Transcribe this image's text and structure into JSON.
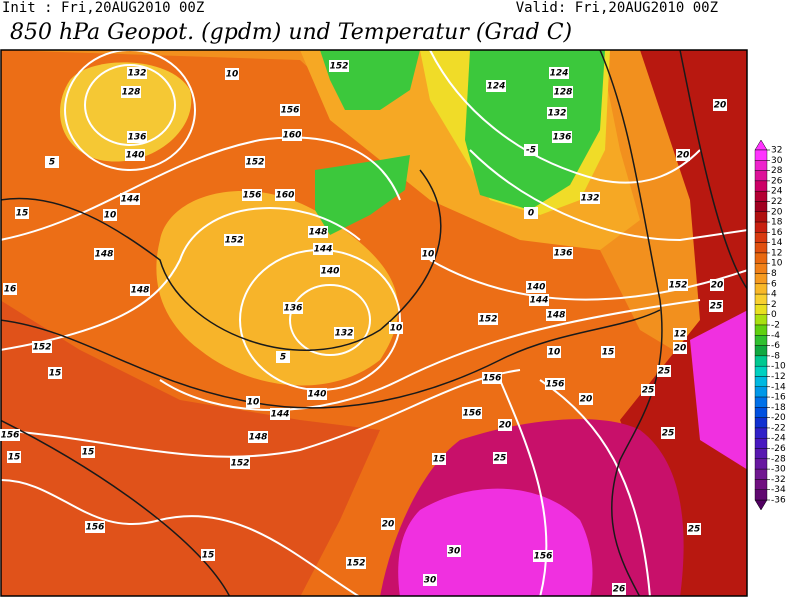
{
  "header": {
    "init": "Init : Fri,20AUG2010 00Z",
    "valid": "Valid: Fri,20AUG2010 00Z",
    "title": "850 hPa Geopot. (gpdm) und Temperatur (Grad C)"
  },
  "colorbar": {
    "ticks": [
      32,
      30,
      28,
      26,
      24,
      22,
      20,
      18,
      16,
      14,
      12,
      10,
      8,
      6,
      4,
      2,
      0,
      -2,
      -4,
      -6,
      -8,
      -10,
      -12,
      -14,
      -16,
      -18,
      -20,
      -22,
      -24,
      -26,
      -28,
      -30,
      -32,
      -34,
      -36
    ],
    "colors": [
      "#ff33ff",
      "#ee22cc",
      "#dd1199",
      "#cc0066",
      "#b30033",
      "#a00020",
      "#b01010",
      "#c82010",
      "#d83a10",
      "#e05010",
      "#e86810",
      "#f08018",
      "#f59a20",
      "#f8b828",
      "#f8d030",
      "#e8e020",
      "#a8e010",
      "#60d010",
      "#30c030",
      "#10a840",
      "#00c890",
      "#00d0c0",
      "#00b8e0",
      "#0098e8",
      "#0070e8",
      "#0050e0",
      "#1030d0",
      "#3020c8",
      "#4818c0",
      "#5818b0",
      "#6818a0",
      "#701890",
      "#701080",
      "#600870"
    ],
    "top_color": "#ff33ff",
    "bottom_color": "#500060"
  },
  "map_labels": [
    "132",
    "128",
    "136",
    "140",
    "144",
    "148",
    "148",
    "152",
    "156",
    "156",
    "15",
    "15",
    "15",
    "15",
    "15",
    "16",
    "5",
    "10",
    "10",
    "152",
    "124",
    "124",
    "128",
    "132",
    "136",
    "156",
    "160",
    "152",
    "156",
    "160",
    "152",
    "148",
    "144",
    "140",
    "136",
    "132",
    "140",
    "144",
    "148",
    "152",
    "140",
    "144",
    "152",
    "148",
    "136",
    "132",
    "152",
    "156",
    "156",
    "156",
    "156",
    "152",
    "20",
    "20",
    "20",
    "20",
    "20",
    "25",
    "25",
    "25",
    "25",
    "25",
    "30",
    "30",
    "26",
    "15",
    "15",
    "10",
    "10",
    "10",
    "10",
    "-5",
    "0",
    "5",
    "20",
    "25",
    "12",
    "20"
  ]
}
